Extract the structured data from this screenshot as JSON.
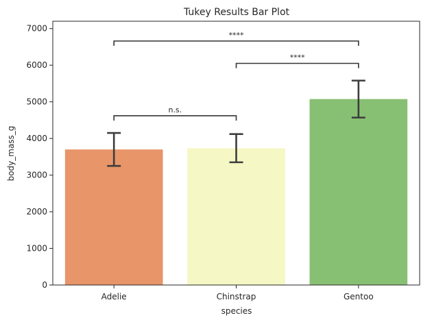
{
  "chart_data": {
    "type": "bar",
    "title": "Tukey Results Bar Plot",
    "xlabel": "species",
    "ylabel": "body_mass_g",
    "categories": [
      "Adelie",
      "Chinstrap",
      "Gentoo"
    ],
    "values": [
      3700,
      3733,
      5076
    ],
    "error_low": [
      3250,
      3350,
      4570
    ],
    "error_high": [
      4150,
      4120,
      5580
    ],
    "colors": [
      "#e8956a",
      "#f5f7c4",
      "#88c073"
    ],
    "ylim": [
      0,
      7200
    ],
    "yticks": [
      0,
      1000,
      2000,
      3000,
      4000,
      5000,
      6000,
      7000
    ],
    "grid": false,
    "annotations": [
      {
        "from": "Adelie",
        "to": "Chinstrap",
        "y": 4620,
        "label": "n.s."
      },
      {
        "from": "Chinstrap",
        "to": "Gentoo",
        "y": 6050,
        "label": "****"
      },
      {
        "from": "Adelie",
        "to": "Gentoo",
        "y": 6660,
        "label": "****"
      }
    ]
  }
}
